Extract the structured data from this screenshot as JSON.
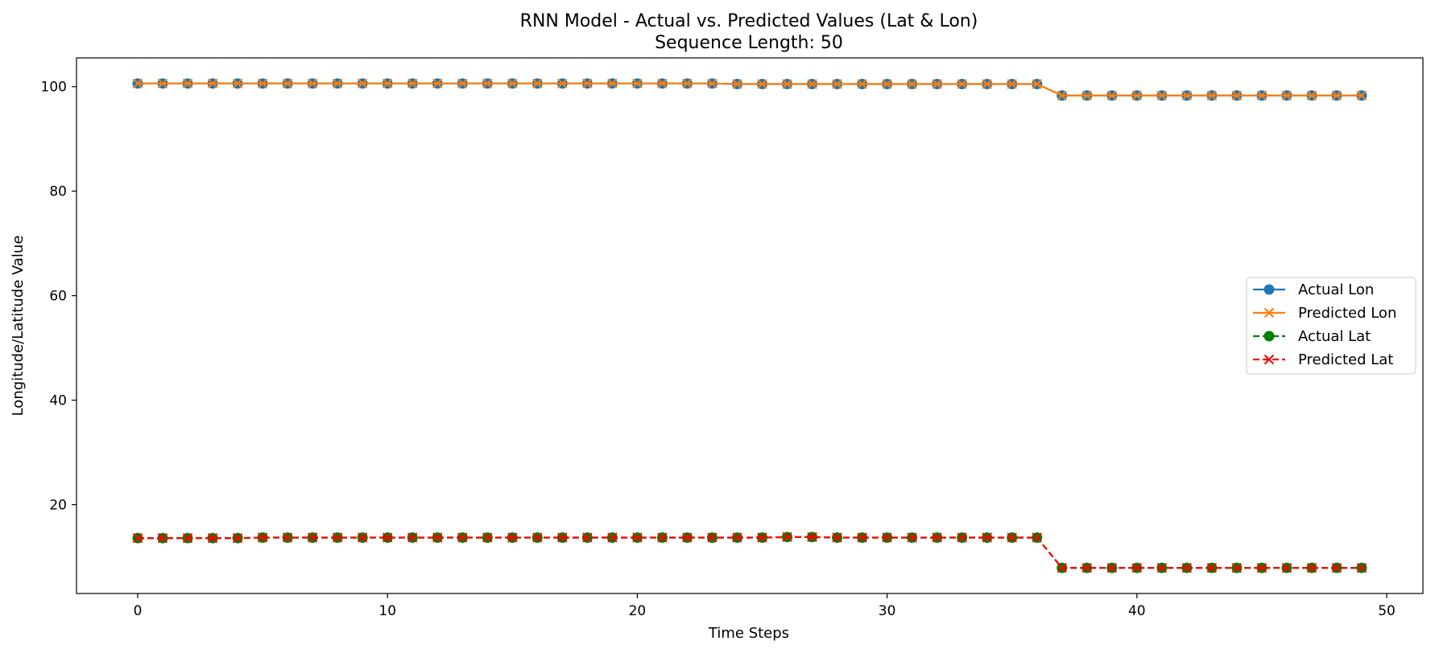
{
  "chart_data": {
    "type": "line",
    "title": "RNN Model - Actual vs. Predicted Values (Lat & Lon)",
    "subtitle": "Sequence Length: 50",
    "xlabel": "Time Steps",
    "ylabel": "Longitude/Latitude Value",
    "xlim": [
      -2.45,
      51.45
    ],
    "ylim": [
      3.0,
      105.5
    ],
    "xticks": [
      0,
      10,
      20,
      30,
      40,
      50
    ],
    "yticks": [
      20,
      40,
      60,
      80,
      100
    ],
    "grid": false,
    "legend_position": "center-right",
    "x": [
      0,
      1,
      2,
      3,
      4,
      5,
      6,
      7,
      8,
      9,
      10,
      11,
      12,
      13,
      14,
      15,
      16,
      17,
      18,
      19,
      20,
      21,
      22,
      23,
      24,
      25,
      26,
      27,
      28,
      29,
      30,
      31,
      32,
      33,
      34,
      35,
      36,
      37,
      38,
      39,
      40,
      41,
      42,
      43,
      44,
      45,
      46,
      47,
      48,
      49
    ],
    "series": [
      {
        "name": "Actual Lon",
        "color": "#1f77b4",
        "marker": "circle",
        "linestyle": "solid",
        "values": [
          100.6,
          100.6,
          100.6,
          100.6,
          100.6,
          100.6,
          100.6,
          100.6,
          100.6,
          100.6,
          100.6,
          100.6,
          100.6,
          100.6,
          100.6,
          100.6,
          100.6,
          100.6,
          100.6,
          100.6,
          100.6,
          100.6,
          100.6,
          100.6,
          100.5,
          100.5,
          100.5,
          100.5,
          100.5,
          100.5,
          100.5,
          100.5,
          100.5,
          100.5,
          100.5,
          100.5,
          100.5,
          98.3,
          98.3,
          98.3,
          98.3,
          98.3,
          98.3,
          98.3,
          98.3,
          98.3,
          98.3,
          98.3,
          98.3,
          98.3
        ]
      },
      {
        "name": "Predicted Lon",
        "color": "#ff7f0e",
        "marker": "x",
        "linestyle": "solid",
        "values": [
          100.6,
          100.6,
          100.6,
          100.6,
          100.6,
          100.6,
          100.6,
          100.6,
          100.6,
          100.6,
          100.6,
          100.6,
          100.6,
          100.6,
          100.6,
          100.6,
          100.6,
          100.6,
          100.6,
          100.6,
          100.6,
          100.6,
          100.6,
          100.6,
          100.5,
          100.5,
          100.5,
          100.5,
          100.5,
          100.5,
          100.5,
          100.5,
          100.5,
          100.5,
          100.5,
          100.5,
          100.5,
          98.3,
          98.3,
          98.3,
          98.3,
          98.3,
          98.3,
          98.3,
          98.3,
          98.3,
          98.3,
          98.3,
          98.3,
          98.3
        ]
      },
      {
        "name": "Actual Lat",
        "color": "#008000",
        "marker": "circle",
        "linestyle": "dashed",
        "values": [
          13.6,
          13.6,
          13.6,
          13.6,
          13.6,
          13.7,
          13.7,
          13.7,
          13.7,
          13.7,
          13.7,
          13.7,
          13.7,
          13.7,
          13.7,
          13.7,
          13.7,
          13.7,
          13.7,
          13.7,
          13.7,
          13.7,
          13.7,
          13.7,
          13.7,
          13.7,
          13.8,
          13.8,
          13.7,
          13.7,
          13.7,
          13.7,
          13.7,
          13.7,
          13.7,
          13.7,
          13.7,
          7.9,
          7.9,
          7.9,
          7.9,
          7.9,
          7.9,
          7.9,
          7.9,
          7.9,
          7.9,
          7.9,
          7.9,
          7.9
        ]
      },
      {
        "name": "Predicted Lat",
        "color": "#ff0000",
        "marker": "x",
        "linestyle": "dashed",
        "values": [
          13.6,
          13.6,
          13.6,
          13.6,
          13.6,
          13.7,
          13.7,
          13.7,
          13.7,
          13.7,
          13.7,
          13.7,
          13.7,
          13.7,
          13.7,
          13.7,
          13.7,
          13.7,
          13.7,
          13.7,
          13.7,
          13.7,
          13.7,
          13.7,
          13.7,
          13.7,
          13.8,
          13.8,
          13.7,
          13.7,
          13.7,
          13.7,
          13.7,
          13.7,
          13.7,
          13.7,
          13.7,
          7.9,
          7.9,
          7.9,
          7.9,
          7.9,
          7.9,
          7.9,
          7.9,
          7.9,
          7.9,
          7.9,
          7.9,
          7.9
        ]
      }
    ]
  }
}
